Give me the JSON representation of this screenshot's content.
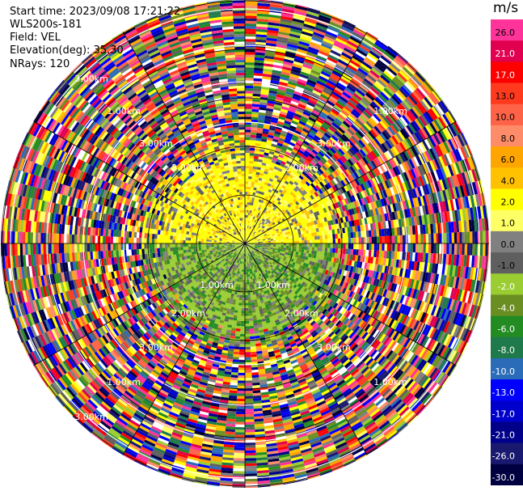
{
  "info": {
    "start_time": "Start time: 2023/09/08 17:21:22",
    "station": "WLS200s-181",
    "field": "Field: VEL",
    "elevation": "Elevation(deg): 35.30",
    "nrays": "NRays: 120"
  },
  "chart_data": {
    "type": "ppi-radar",
    "field": "VEL",
    "n_rays": 120,
    "elevation_deg": 35.3,
    "range_ring_labels": [
      "1.00km",
      "2.00km",
      "3.00km"
    ],
    "range_rings_km": [
      1,
      2,
      3,
      4,
      5
    ],
    "colorbar": {
      "unit": "m/s",
      "ticks": [
        "26.0",
        "21.0",
        "17.0",
        "13.0",
        "10.0",
        "8.0",
        "6.0",
        "4.0",
        "2.0",
        "1.0",
        "0.0",
        "-1.0",
        "-2.0",
        "-4.0",
        "-6.0",
        "-8.0",
        "-10.0",
        "-13.0",
        "-17.0",
        "-21.0",
        "-26.0",
        "-30.0"
      ],
      "colors": [
        "#ff3399",
        "#e0004f",
        "#ff0000",
        "#ff3a1f",
        "#ff6347",
        "#ff8c69",
        "#ffa500",
        "#ffc100",
        "#ffff00",
        "#ffff66",
        "#808080",
        "#5f5f5f",
        "#9acd32",
        "#6b8e23",
        "#228b22",
        "#1e7a4a",
        "#2b6cb8",
        "#0000ff",
        "#0000cd",
        "#00008b",
        "#191970",
        "#000040"
      ]
    }
  }
}
